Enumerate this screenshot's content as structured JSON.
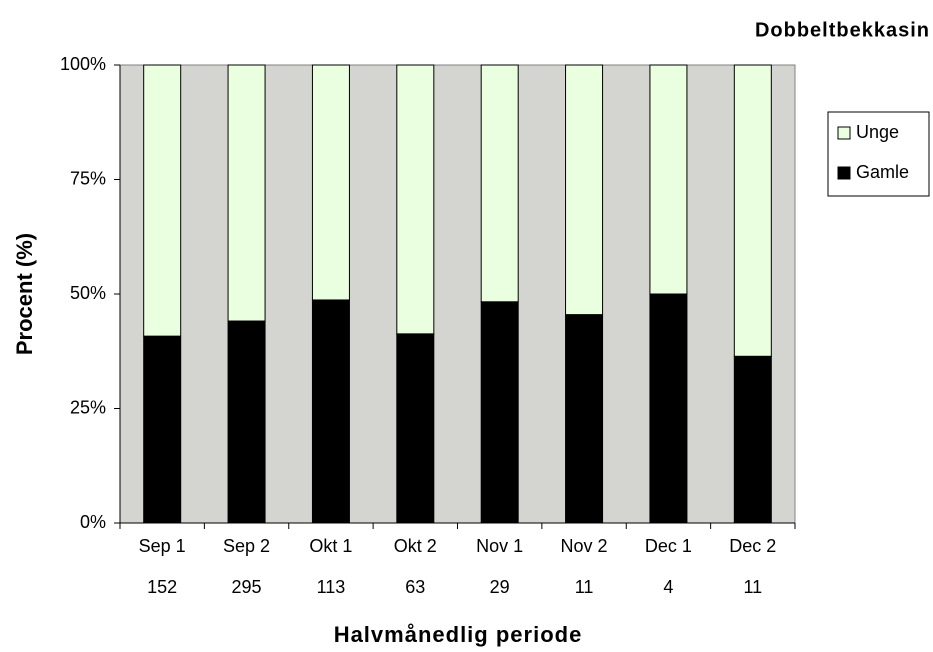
{
  "chart_data": {
    "type": "bar",
    "stacked": true,
    "title": "Dobbeltbekkasin",
    "xlabel": "Halvmånedlig periode",
    "ylabel": "Procent (%)",
    "categories": [
      "Sep 1",
      "Sep 2",
      "Okt 1",
      "Okt 2",
      "Nov 1",
      "Nov 2",
      "Dec 1",
      "Dec 2"
    ],
    "category_counts": [
      152,
      295,
      113,
      63,
      29,
      11,
      4,
      11
    ],
    "series": [
      {
        "name": "Gamle",
        "color": "#000000",
        "values": [
          40.8,
          44.1,
          48.7,
          41.3,
          48.3,
          45.5,
          50,
          36.4
        ]
      },
      {
        "name": "Unge",
        "color": "#eaffe0",
        "values": [
          59.2,
          55.9,
          51.3,
          58.7,
          51.7,
          54.5,
          50,
          63.6
        ]
      }
    ],
    "ylim": [
      0,
      100
    ],
    "yticks": [
      {
        "value": 0,
        "label": "0%"
      },
      {
        "value": 25,
        "label": "25%"
      },
      {
        "value": 50,
        "label": "50%"
      },
      {
        "value": 75,
        "label": "75%"
      },
      {
        "value": 100,
        "label": "100%"
      }
    ],
    "grid": false,
    "legend": "right"
  }
}
